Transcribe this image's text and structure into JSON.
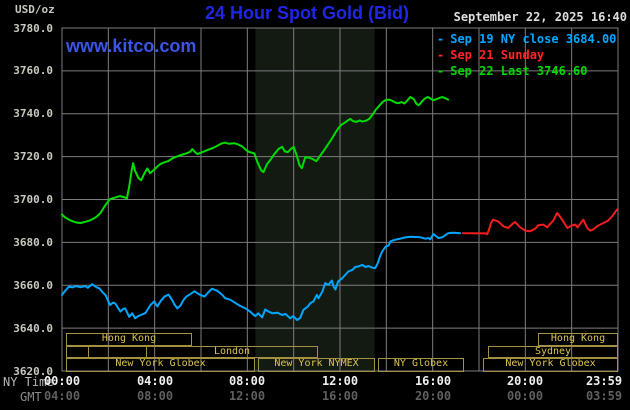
{
  "header": {
    "unit_label": "USD/oz",
    "title": "24 Hour Spot Gold (Bid)",
    "datetime": "September 22, 2025 16:40",
    "watermark": "www.kitco.com",
    "legend": [
      {
        "marker": "-",
        "label": "Sep 19 NY close 3684.00",
        "color": "#00a8ff"
      },
      {
        "marker": "-",
        "label": "Sep 21 Sunday",
        "color": "#ff2626"
      },
      {
        "marker": "-",
        "label": "Sep 22 Last 3746.60",
        "color": "#00d900"
      }
    ]
  },
  "axes": {
    "y_ticks": [
      "3780.0",
      "3760.0",
      "3740.0",
      "3720.0",
      "3700.0",
      "3680.0",
      "3660.0",
      "3640.0",
      "3620.0"
    ],
    "x_rows": [
      {
        "label": "NY Time",
        "ticks": [
          "00:00",
          "04:00",
          "08:00",
          "12:00",
          "16:00",
          "20:00",
          "23:59"
        ]
      },
      {
        "label": "GMT",
        "ticks": [
          "04:00",
          "08:00",
          "12:00",
          "16:00",
          "20:00",
          "00:00",
          "03:59"
        ]
      }
    ]
  },
  "sessions": [
    {
      "label": "Hong Kong"
    },
    {
      "label": "Hong Kong"
    },
    {
      "label": ""
    },
    {
      "label": ""
    },
    {
      "label": "London"
    },
    {
      "label": "Sydney"
    },
    {
      "label": "New York Globex"
    },
    {
      "label": "New York NYMEX"
    },
    {
      "label": "NY Globex"
    },
    {
      "label": "New York Globex"
    }
  ],
  "chart_data": {
    "type": "line",
    "title": "24 Hour Spot Gold (Bid)",
    "xlabel": "NY Time",
    "ylabel": "USD/oz",
    "xlim_hours": [
      0,
      24
    ],
    "ylim": [
      3620,
      3780
    ],
    "y_step": 20,
    "x_gridline_step_hours": 2,
    "grid": true,
    "legend_position": "top-right",
    "highlight_band_hours": {
      "start": 8.35,
      "end": 13.5,
      "color": "#121a12"
    },
    "colors": {
      "grid": "#7d7d7d",
      "border": "#7d7d7d"
    },
    "series": [
      {
        "name": "sep22",
        "label": "Sep 22 Last 3746.60",
        "color": "#00dd00",
        "points": [
          [
            0,
            3693
          ],
          [
            0.15,
            3691.5
          ],
          [
            0.35,
            3690.3
          ],
          [
            0.6,
            3689.3
          ],
          [
            0.8,
            3689
          ],
          [
            1.0,
            3689.6
          ],
          [
            1.2,
            3690.2
          ],
          [
            1.45,
            3691.6
          ],
          [
            1.65,
            3693.5
          ],
          [
            1.85,
            3697
          ],
          [
            2.05,
            3700
          ],
          [
            2.3,
            3701
          ],
          [
            2.5,
            3701.6
          ],
          [
            2.7,
            3701
          ],
          [
            2.8,
            3700.4
          ],
          [
            2.9,
            3706
          ],
          [
            3.0,
            3713
          ],
          [
            3.07,
            3717
          ],
          [
            3.15,
            3713.5
          ],
          [
            3.3,
            3710
          ],
          [
            3.42,
            3709
          ],
          [
            3.55,
            3712
          ],
          [
            3.68,
            3714.5
          ],
          [
            3.8,
            3712.3
          ],
          [
            3.95,
            3713.6
          ],
          [
            4.1,
            3715.2
          ],
          [
            4.25,
            3716.6
          ],
          [
            4.4,
            3717.3
          ],
          [
            4.6,
            3718
          ],
          [
            4.8,
            3719.4
          ],
          [
            5.0,
            3720.2
          ],
          [
            5.2,
            3721
          ],
          [
            5.4,
            3721.6
          ],
          [
            5.55,
            3722.4
          ],
          [
            5.62,
            3723.5
          ],
          [
            5.75,
            3722
          ],
          [
            5.85,
            3721.2
          ],
          [
            6.0,
            3721.9
          ],
          [
            6.15,
            3722.5
          ],
          [
            6.3,
            3723.2
          ],
          [
            6.5,
            3724
          ],
          [
            6.7,
            3725
          ],
          [
            6.9,
            3726.2
          ],
          [
            7.05,
            3726.5
          ],
          [
            7.2,
            3726
          ],
          [
            7.45,
            3726.2
          ],
          [
            7.6,
            3725.7
          ],
          [
            7.8,
            3724.6
          ],
          [
            7.95,
            3723
          ],
          [
            8.1,
            3722.1
          ],
          [
            8.3,
            3721.5
          ],
          [
            8.45,
            3717
          ],
          [
            8.6,
            3713.6
          ],
          [
            8.7,
            3712.8
          ],
          [
            8.85,
            3716.5
          ],
          [
            9.0,
            3718.5
          ],
          [
            9.15,
            3721
          ],
          [
            9.35,
            3723.6
          ],
          [
            9.5,
            3724.6
          ],
          [
            9.62,
            3722.4
          ],
          [
            9.75,
            3722.1
          ],
          [
            9.9,
            3723.8
          ],
          [
            10.0,
            3724.5
          ],
          [
            10.12,
            3721
          ],
          [
            10.25,
            3716
          ],
          [
            10.35,
            3714.6
          ],
          [
            10.5,
            3719.8
          ],
          [
            10.65,
            3719.5
          ],
          [
            10.8,
            3719
          ],
          [
            10.98,
            3717.9
          ],
          [
            11.15,
            3720.5
          ],
          [
            11.35,
            3723.5
          ],
          [
            11.55,
            3726.8
          ],
          [
            11.65,
            3728.4
          ],
          [
            11.8,
            3731.2
          ],
          [
            11.95,
            3733.5
          ],
          [
            12.05,
            3734.8
          ],
          [
            12.2,
            3735.8
          ],
          [
            12.35,
            3737
          ],
          [
            12.45,
            3737.6
          ],
          [
            12.55,
            3736.6
          ],
          [
            12.7,
            3736.2
          ],
          [
            12.85,
            3736.9
          ],
          [
            12.95,
            3736.4
          ],
          [
            13.1,
            3736.7
          ],
          [
            13.25,
            3737.5
          ],
          [
            13.4,
            3739.5
          ],
          [
            13.55,
            3742
          ],
          [
            13.7,
            3743.8
          ],
          [
            13.85,
            3745.6
          ],
          [
            14.0,
            3746.5
          ],
          [
            14.12,
            3746.6
          ],
          [
            14.25,
            3746.1
          ],
          [
            14.4,
            3745.2
          ],
          [
            14.52,
            3744.9
          ],
          [
            14.65,
            3745.5
          ],
          [
            14.78,
            3744.8
          ],
          [
            14.92,
            3746.3
          ],
          [
            15.03,
            3747.8
          ],
          [
            15.18,
            3746.9
          ],
          [
            15.3,
            3744.6
          ],
          [
            15.4,
            3744
          ],
          [
            15.52,
            3745.5
          ],
          [
            15.65,
            3747
          ],
          [
            15.78,
            3747.8
          ],
          [
            15.9,
            3747.1
          ],
          [
            16.03,
            3746.3
          ],
          [
            16.18,
            3746.9
          ],
          [
            16.3,
            3747.4
          ],
          [
            16.42,
            3747.8
          ],
          [
            16.55,
            3747.2
          ],
          [
            16.67,
            3746.6
          ]
        ]
      },
      {
        "name": "sep19",
        "label": "Sep 19 NY close 3684.00",
        "color": "#00a6ff",
        "points": [
          [
            0,
            3655.5
          ],
          [
            0.15,
            3657.6
          ],
          [
            0.3,
            3659.4
          ],
          [
            0.45,
            3659
          ],
          [
            0.6,
            3659.6
          ],
          [
            0.8,
            3659.1
          ],
          [
            1.0,
            3659.6
          ],
          [
            1.12,
            3658.8
          ],
          [
            1.3,
            3660.5
          ],
          [
            1.5,
            3659
          ],
          [
            1.62,
            3658.5
          ],
          [
            1.78,
            3656.4
          ],
          [
            1.88,
            3655.4
          ],
          [
            2.0,
            3652.5
          ],
          [
            2.08,
            3650.8
          ],
          [
            2.2,
            3651.9
          ],
          [
            2.3,
            3651.5
          ],
          [
            2.42,
            3649.4
          ],
          [
            2.52,
            3647.7
          ],
          [
            2.64,
            3648.9
          ],
          [
            2.73,
            3649.2
          ],
          [
            2.9,
            3645.3
          ],
          [
            3.03,
            3646.9
          ],
          [
            3.16,
            3644.6
          ],
          [
            3.29,
            3645.6
          ],
          [
            3.4,
            3646.1
          ],
          [
            3.6,
            3647
          ],
          [
            3.82,
            3650.8
          ],
          [
            3.98,
            3652.4
          ],
          [
            4.12,
            3650.1
          ],
          [
            4.25,
            3652.5
          ],
          [
            4.42,
            3654.7
          ],
          [
            4.6,
            3655.6
          ],
          [
            4.76,
            3653
          ],
          [
            4.86,
            3650.9
          ],
          [
            4.98,
            3649.2
          ],
          [
            5.12,
            3650.6
          ],
          [
            5.25,
            3653.2
          ],
          [
            5.38,
            3654.8
          ],
          [
            5.5,
            3655.6
          ],
          [
            5.72,
            3657.2
          ],
          [
            5.92,
            3655.8
          ],
          [
            6.15,
            3654.7
          ],
          [
            6.35,
            3657.1
          ],
          [
            6.48,
            3658.4
          ],
          [
            6.7,
            3657.4
          ],
          [
            6.92,
            3655.5
          ],
          [
            7.05,
            3653.9
          ],
          [
            7.27,
            3653.2
          ],
          [
            7.5,
            3651.6
          ],
          [
            7.7,
            3650.3
          ],
          [
            7.92,
            3649.2
          ],
          [
            8.12,
            3647.7
          ],
          [
            8.34,
            3645.6
          ],
          [
            8.47,
            3646.9
          ],
          [
            8.64,
            3645
          ],
          [
            8.77,
            3648.7
          ],
          [
            8.92,
            3647.7
          ],
          [
            9.08,
            3646.9
          ],
          [
            9.3,
            3647.2
          ],
          [
            9.5,
            3646.1
          ],
          [
            9.65,
            3646.6
          ],
          [
            9.85,
            3644.6
          ],
          [
            9.98,
            3645.6
          ],
          [
            10.15,
            3643.8
          ],
          [
            10.28,
            3644.7
          ],
          [
            10.42,
            3648.5
          ],
          [
            10.6,
            3650
          ],
          [
            10.72,
            3651.6
          ],
          [
            10.85,
            3652.4
          ],
          [
            11.0,
            3655.5
          ],
          [
            11.07,
            3653.9
          ],
          [
            11.24,
            3657.1
          ],
          [
            11.36,
            3661
          ],
          [
            11.5,
            3660.2
          ],
          [
            11.65,
            3662.2
          ],
          [
            11.72,
            3659.4
          ],
          [
            11.8,
            3658
          ],
          [
            11.92,
            3661.8
          ],
          [
            12.1,
            3663.3
          ],
          [
            12.24,
            3665
          ],
          [
            12.36,
            3666.4
          ],
          [
            12.54,
            3667.2
          ],
          [
            12.66,
            3668.5
          ],
          [
            12.8,
            3668.8
          ],
          [
            12.96,
            3669.5
          ],
          [
            13.1,
            3668.5
          ],
          [
            13.22,
            3669
          ],
          [
            13.4,
            3668.2
          ],
          [
            13.52,
            3668
          ],
          [
            13.62,
            3670
          ],
          [
            13.72,
            3673.2
          ],
          [
            13.82,
            3675.8
          ],
          [
            13.96,
            3677.9
          ],
          [
            14.1,
            3678.6
          ],
          [
            14.18,
            3680.5
          ],
          [
            14.4,
            3681.3
          ],
          [
            14.6,
            3681.7
          ],
          [
            14.82,
            3682.3
          ],
          [
            15.04,
            3682.6
          ],
          [
            15.25,
            3682.5
          ],
          [
            15.46,
            3682.4
          ],
          [
            15.68,
            3681.7
          ],
          [
            15.82,
            3682
          ],
          [
            15.9,
            3681.4
          ],
          [
            16.03,
            3683.9
          ],
          [
            16.25,
            3682
          ],
          [
            16.42,
            3682.4
          ],
          [
            16.67,
            3684.3
          ],
          [
            16.85,
            3684.5
          ],
          [
            17.0,
            3684.4
          ],
          [
            17.18,
            3684.3
          ]
        ]
      },
      {
        "name": "sep21",
        "label": "Sep 21 Sunday",
        "color": "#f21d1d",
        "points": [
          [
            17.3,
            3684.3
          ],
          [
            17.62,
            3684.3
          ],
          [
            17.97,
            3684.2
          ],
          [
            18.27,
            3684.3
          ],
          [
            18.35,
            3683.8
          ],
          [
            18.42,
            3685.5
          ],
          [
            18.5,
            3688.5
          ],
          [
            18.6,
            3690.6
          ],
          [
            18.83,
            3689.8
          ],
          [
            19.05,
            3687.5
          ],
          [
            19.26,
            3686.7
          ],
          [
            19.48,
            3689
          ],
          [
            19.56,
            3689.5
          ],
          [
            19.78,
            3687
          ],
          [
            20.0,
            3685.5
          ],
          [
            20.21,
            3685.2
          ],
          [
            20.43,
            3686.4
          ],
          [
            20.56,
            3688
          ],
          [
            20.77,
            3688.3
          ],
          [
            20.95,
            3687
          ],
          [
            21.07,
            3688.6
          ],
          [
            21.2,
            3690
          ],
          [
            21.37,
            3693.7
          ],
          [
            21.43,
            3693
          ],
          [
            21.64,
            3689.8
          ],
          [
            21.81,
            3686.7
          ],
          [
            22.03,
            3688
          ],
          [
            22.16,
            3688.3
          ],
          [
            22.25,
            3687
          ],
          [
            22.5,
            3690.6
          ],
          [
            22.67,
            3686.7
          ],
          [
            22.8,
            3685.5
          ],
          [
            22.93,
            3686
          ],
          [
            23.1,
            3687.5
          ],
          [
            23.23,
            3688.3
          ],
          [
            23.36,
            3689
          ],
          [
            23.58,
            3690.2
          ],
          [
            23.75,
            3692.2
          ],
          [
            23.96,
            3695.4
          ]
        ]
      }
    ]
  }
}
